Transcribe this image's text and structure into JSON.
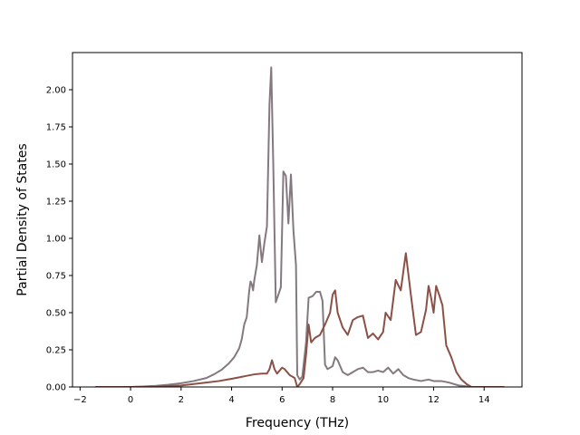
{
  "chart_data": {
    "type": "line",
    "xlabel": "Frequency (THz)",
    "ylabel": "Partial Density of States",
    "xlim": [
      -2.3,
      15.5
    ],
    "ylim": [
      0.0,
      2.25
    ],
    "x_ticks": [
      -2,
      0,
      2,
      4,
      6,
      8,
      10,
      12,
      14
    ],
    "x_tick_labels": [
      "−2",
      "0",
      "2",
      "4",
      "6",
      "8",
      "10",
      "12",
      "14"
    ],
    "y_ticks": [
      0.0,
      0.25,
      0.5,
      0.75,
      1.0,
      1.25,
      1.5,
      1.75,
      2.0
    ],
    "y_tick_labels": [
      "0.00",
      "0.25",
      "0.50",
      "0.75",
      "1.00",
      "1.25",
      "1.50",
      "1.75",
      "2.00"
    ],
    "grid": false,
    "series": [
      {
        "color": "#857980",
        "points": [
          [
            -1.4,
            0.0
          ],
          [
            0.0,
            0.0
          ],
          [
            0.5,
            0.003
          ],
          [
            1.0,
            0.008
          ],
          [
            1.5,
            0.015
          ],
          [
            2.0,
            0.025
          ],
          [
            2.5,
            0.04
          ],
          [
            3.0,
            0.06
          ],
          [
            3.3,
            0.085
          ],
          [
            3.6,
            0.115
          ],
          [
            3.9,
            0.16
          ],
          [
            4.1,
            0.2
          ],
          [
            4.3,
            0.26
          ],
          [
            4.4,
            0.32
          ],
          [
            4.5,
            0.42
          ],
          [
            4.6,
            0.47
          ],
          [
            4.7,
            0.65
          ],
          [
            4.75,
            0.71
          ],
          [
            4.8,
            0.69
          ],
          [
            4.85,
            0.65
          ],
          [
            4.9,
            0.72
          ],
          [
            5.0,
            0.82
          ],
          [
            5.1,
            1.02
          ],
          [
            5.2,
            0.84
          ],
          [
            5.3,
            0.97
          ],
          [
            5.4,
            1.08
          ],
          [
            5.5,
            1.9
          ],
          [
            5.57,
            2.15
          ],
          [
            5.65,
            1.5
          ],
          [
            5.75,
            0.57
          ],
          [
            5.85,
            0.62
          ],
          [
            5.95,
            0.67
          ],
          [
            6.05,
            1.45
          ],
          [
            6.15,
            1.42
          ],
          [
            6.25,
            1.1
          ],
          [
            6.35,
            1.43
          ],
          [
            6.45,
            1.05
          ],
          [
            6.55,
            0.82
          ],
          [
            6.6,
            0.08
          ],
          [
            6.7,
            0.05
          ],
          [
            6.8,
            0.07
          ],
          [
            6.95,
            0.3
          ],
          [
            7.05,
            0.6
          ],
          [
            7.2,
            0.61
          ],
          [
            7.35,
            0.64
          ],
          [
            7.5,
            0.64
          ],
          [
            7.6,
            0.58
          ],
          [
            7.7,
            0.15
          ],
          [
            7.8,
            0.12
          ],
          [
            7.9,
            0.13
          ],
          [
            8.0,
            0.14
          ],
          [
            8.1,
            0.2
          ],
          [
            8.2,
            0.18
          ],
          [
            8.4,
            0.1
          ],
          [
            8.6,
            0.08
          ],
          [
            8.8,
            0.1
          ],
          [
            9.0,
            0.12
          ],
          [
            9.2,
            0.13
          ],
          [
            9.4,
            0.1
          ],
          [
            9.6,
            0.1
          ],
          [
            9.8,
            0.11
          ],
          [
            10.0,
            0.1
          ],
          [
            10.2,
            0.13
          ],
          [
            10.4,
            0.09
          ],
          [
            10.6,
            0.12
          ],
          [
            10.8,
            0.08
          ],
          [
            11.0,
            0.06
          ],
          [
            11.2,
            0.05
          ],
          [
            11.5,
            0.04
          ],
          [
            11.8,
            0.05
          ],
          [
            12.0,
            0.04
          ],
          [
            12.3,
            0.04
          ],
          [
            12.6,
            0.03
          ],
          [
            13.0,
            0.01
          ],
          [
            13.5,
            0.0
          ],
          [
            14.8,
            0.0
          ]
        ]
      },
      {
        "color": "#8b5147",
        "points": [
          [
            -1.4,
            0.0
          ],
          [
            0.0,
            0.0
          ],
          [
            1.0,
            0.002
          ],
          [
            2.0,
            0.01
          ],
          [
            3.0,
            0.03
          ],
          [
            3.5,
            0.04
          ],
          [
            4.0,
            0.055
          ],
          [
            4.3,
            0.065
          ],
          [
            4.6,
            0.075
          ],
          [
            4.9,
            0.085
          ],
          [
            5.2,
            0.09
          ],
          [
            5.4,
            0.09
          ],
          [
            5.5,
            0.12
          ],
          [
            5.6,
            0.18
          ],
          [
            5.7,
            0.12
          ],
          [
            5.8,
            0.09
          ],
          [
            6.0,
            0.13
          ],
          [
            6.1,
            0.12
          ],
          [
            6.3,
            0.08
          ],
          [
            6.5,
            0.06
          ],
          [
            6.6,
            0.0
          ],
          [
            6.7,
            0.02
          ],
          [
            6.85,
            0.06
          ],
          [
            6.95,
            0.22
          ],
          [
            7.05,
            0.42
          ],
          [
            7.15,
            0.3
          ],
          [
            7.3,
            0.33
          ],
          [
            7.5,
            0.35
          ],
          [
            7.7,
            0.42
          ],
          [
            7.9,
            0.5
          ],
          [
            8.0,
            0.62
          ],
          [
            8.1,
            0.65
          ],
          [
            8.2,
            0.5
          ],
          [
            8.4,
            0.4
          ],
          [
            8.6,
            0.35
          ],
          [
            8.8,
            0.45
          ],
          [
            9.0,
            0.47
          ],
          [
            9.2,
            0.48
          ],
          [
            9.4,
            0.33
          ],
          [
            9.6,
            0.36
          ],
          [
            9.8,
            0.32
          ],
          [
            10.0,
            0.37
          ],
          [
            10.1,
            0.5
          ],
          [
            10.3,
            0.45
          ],
          [
            10.5,
            0.72
          ],
          [
            10.7,
            0.65
          ],
          [
            10.9,
            0.9
          ],
          [
            11.1,
            0.62
          ],
          [
            11.3,
            0.35
          ],
          [
            11.5,
            0.37
          ],
          [
            11.7,
            0.52
          ],
          [
            11.8,
            0.68
          ],
          [
            11.9,
            0.6
          ],
          [
            12.0,
            0.5
          ],
          [
            12.1,
            0.68
          ],
          [
            12.2,
            0.63
          ],
          [
            12.35,
            0.55
          ],
          [
            12.5,
            0.28
          ],
          [
            12.7,
            0.2
          ],
          [
            12.9,
            0.1
          ],
          [
            13.1,
            0.05
          ],
          [
            13.3,
            0.02
          ],
          [
            13.5,
            0.0
          ],
          [
            14.8,
            0.0
          ]
        ]
      }
    ]
  }
}
